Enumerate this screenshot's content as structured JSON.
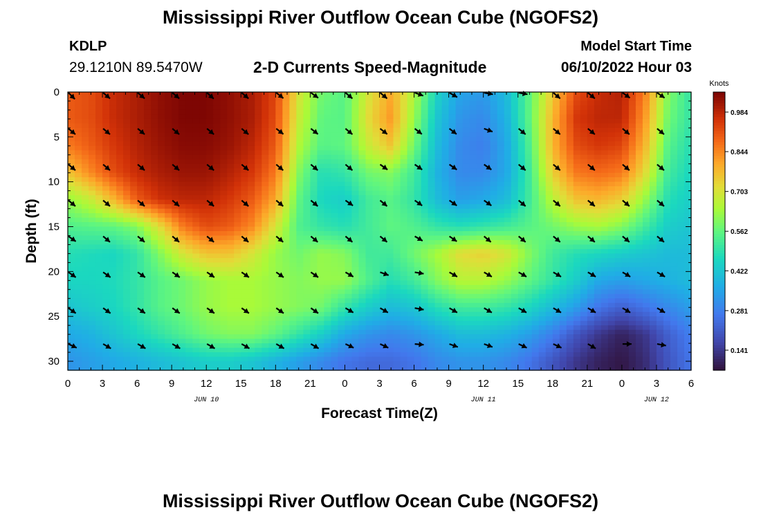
{
  "header": {
    "title": "Mississippi River Outflow Ocean Cube (NGOFS2)",
    "station_id": "KDLP",
    "station_coords": "29.1210N  89.5470W",
    "subtitle": "2-D Currents Speed-Magnitude",
    "model_start_label": "Model Start Time",
    "model_start_value": "06/10/2022 Hour 03"
  },
  "footer": {
    "title": "Mississippi River Outflow Ocean Cube (NGOFS2)"
  },
  "chart_data": {
    "type": "heatmap",
    "xlabel": "Forecast Time(Z)",
    "ylabel": "Depth (ft)",
    "x_range_hours": [
      0,
      54
    ],
    "y_range_ft": [
      0,
      31
    ],
    "x_ticks": [
      {
        "h": 0,
        "label": "0"
      },
      {
        "h": 3,
        "label": "3"
      },
      {
        "h": 6,
        "label": "6"
      },
      {
        "h": 9,
        "label": "9"
      },
      {
        "h": 12,
        "label": "12"
      },
      {
        "h": 15,
        "label": "15"
      },
      {
        "h": 18,
        "label": "18"
      },
      {
        "h": 21,
        "label": "21"
      },
      {
        "h": 24,
        "label": "0"
      },
      {
        "h": 27,
        "label": "3"
      },
      {
        "h": 30,
        "label": "6"
      },
      {
        "h": 33,
        "label": "9"
      },
      {
        "h": 36,
        "label": "12"
      },
      {
        "h": 39,
        "label": "15"
      },
      {
        "h": 42,
        "label": "18"
      },
      {
        "h": 45,
        "label": "21"
      },
      {
        "h": 48,
        "label": "0"
      },
      {
        "h": 51,
        "label": "3"
      },
      {
        "h": 54,
        "label": "6"
      }
    ],
    "date_labels": [
      {
        "h": 12,
        "label": "JUN 10"
      },
      {
        "h": 36,
        "label": "JUN 11"
      },
      {
        "h": 51,
        "label": "JUN 12"
      }
    ],
    "y_ticks": [
      0,
      5,
      10,
      15,
      20,
      25,
      30
    ],
    "colorbar": {
      "title": "Knots",
      "min": 0.07,
      "max": 1.055,
      "ticks": [
        "0.984",
        "0.844",
        "0.703",
        "0.562",
        "0.422",
        "0.281",
        "0.141"
      ]
    },
    "grid": false,
    "speed_time_hours": [
      0,
      2,
      4,
      6,
      8,
      10,
      12,
      14,
      16,
      18,
      20,
      22,
      24,
      26,
      28,
      30,
      32,
      34,
      36,
      38,
      40,
      42,
      44,
      46,
      48,
      50,
      52,
      54
    ],
    "speed_depth_ft": [
      0,
      3,
      6,
      9,
      12,
      15,
      18,
      21,
      24,
      27,
      30
    ],
    "speed_knots": [
      [
        0.9,
        0.92,
        0.97,
        1.0,
        1.03,
        1.05,
        1.05,
        1.03,
        1.0,
        0.93,
        0.7,
        0.58,
        0.55,
        0.7,
        0.8,
        0.65,
        0.45,
        0.35,
        0.33,
        0.4,
        0.56,
        0.75,
        0.92,
        0.97,
        0.99,
        0.85,
        0.6,
        0.5
      ],
      [
        0.9,
        0.92,
        0.97,
        1.0,
        1.03,
        1.05,
        1.05,
        1.03,
        1.0,
        0.92,
        0.68,
        0.56,
        0.55,
        0.72,
        0.82,
        0.62,
        0.42,
        0.32,
        0.3,
        0.38,
        0.56,
        0.78,
        0.95,
        0.98,
        0.98,
        0.82,
        0.58,
        0.5
      ],
      [
        0.86,
        0.9,
        0.95,
        0.99,
        1.02,
        1.04,
        1.04,
        1.02,
        0.98,
        0.9,
        0.65,
        0.55,
        0.56,
        0.68,
        0.76,
        0.58,
        0.4,
        0.3,
        0.28,
        0.36,
        0.54,
        0.78,
        0.92,
        0.95,
        0.93,
        0.78,
        0.55,
        0.48
      ],
      [
        0.76,
        0.84,
        0.92,
        0.97,
        1.0,
        1.02,
        1.02,
        0.99,
        0.95,
        0.86,
        0.6,
        0.48,
        0.5,
        0.58,
        0.6,
        0.52,
        0.38,
        0.3,
        0.3,
        0.36,
        0.52,
        0.74,
        0.86,
        0.88,
        0.86,
        0.72,
        0.52,
        0.46
      ],
      [
        0.62,
        0.68,
        0.78,
        0.9,
        0.96,
        0.98,
        0.98,
        0.95,
        0.9,
        0.8,
        0.56,
        0.46,
        0.44,
        0.52,
        0.55,
        0.5,
        0.4,
        0.34,
        0.36,
        0.4,
        0.52,
        0.66,
        0.76,
        0.78,
        0.74,
        0.62,
        0.48,
        0.44
      ],
      [
        0.54,
        0.55,
        0.56,
        0.6,
        0.72,
        0.86,
        0.92,
        0.9,
        0.84,
        0.7,
        0.54,
        0.5,
        0.48,
        0.52,
        0.56,
        0.54,
        0.5,
        0.48,
        0.5,
        0.52,
        0.55,
        0.58,
        0.62,
        0.64,
        0.6,
        0.52,
        0.44,
        0.42
      ],
      [
        0.48,
        0.47,
        0.46,
        0.5,
        0.6,
        0.7,
        0.76,
        0.76,
        0.7,
        0.62,
        0.58,
        0.62,
        0.6,
        0.52,
        0.52,
        0.58,
        0.64,
        0.72,
        0.74,
        0.7,
        0.6,
        0.52,
        0.48,
        0.46,
        0.44,
        0.42,
        0.4,
        0.4
      ],
      [
        0.46,
        0.46,
        0.47,
        0.5,
        0.55,
        0.58,
        0.62,
        0.64,
        0.64,
        0.62,
        0.6,
        0.62,
        0.62,
        0.54,
        0.48,
        0.52,
        0.6,
        0.66,
        0.66,
        0.62,
        0.56,
        0.5,
        0.44,
        0.36,
        0.34,
        0.36,
        0.38,
        0.4
      ],
      [
        0.42,
        0.44,
        0.46,
        0.5,
        0.55,
        0.58,
        0.62,
        0.64,
        0.64,
        0.62,
        0.6,
        0.58,
        0.5,
        0.44,
        0.4,
        0.42,
        0.48,
        0.52,
        0.52,
        0.5,
        0.46,
        0.4,
        0.34,
        0.26,
        0.22,
        0.26,
        0.3,
        0.34
      ],
      [
        0.36,
        0.38,
        0.42,
        0.46,
        0.5,
        0.54,
        0.58,
        0.6,
        0.6,
        0.56,
        0.5,
        0.44,
        0.36,
        0.32,
        0.3,
        0.32,
        0.36,
        0.4,
        0.4,
        0.38,
        0.34,
        0.28,
        0.2,
        0.14,
        0.1,
        0.14,
        0.22,
        0.28
      ],
      [
        0.32,
        0.34,
        0.36,
        0.38,
        0.4,
        0.42,
        0.44,
        0.44,
        0.42,
        0.38,
        0.34,
        0.3,
        0.26,
        0.24,
        0.24,
        0.26,
        0.3,
        0.32,
        0.32,
        0.3,
        0.26,
        0.2,
        0.14,
        0.1,
        0.08,
        0.12,
        0.2,
        0.26
      ]
    ],
    "vector_time_hours": [
      0,
      3,
      6,
      9,
      12,
      15,
      18,
      21,
      24,
      27,
      30,
      33,
      36,
      39,
      42,
      45,
      48,
      51
    ],
    "vector_depth_ft": [
      0,
      4,
      8,
      12,
      16,
      20,
      24,
      28
    ],
    "vector_direction_deg": [
      [
        135,
        130,
        130,
        130,
        132,
        130,
        128,
        125,
        130,
        130,
        110,
        120,
        100,
        100,
        130,
        130,
        125,
        125
      ],
      [
        130,
        130,
        130,
        130,
        130,
        130,
        128,
        128,
        130,
        128,
        128,
        128,
        110,
        130,
        130,
        130,
        130,
        130
      ],
      [
        130,
        130,
        130,
        130,
        130,
        130,
        130,
        130,
        130,
        125,
        125,
        125,
        125,
        130,
        130,
        130,
        130,
        130
      ],
      [
        130,
        130,
        130,
        130,
        130,
        130,
        130,
        130,
        125,
        130,
        125,
        125,
        125,
        130,
        130,
        130,
        130,
        130
      ],
      [
        125,
        130,
        130,
        130,
        130,
        130,
        130,
        130,
        130,
        130,
        120,
        125,
        130,
        130,
        130,
        130,
        130,
        130
      ],
      [
        125,
        125,
        125,
        125,
        125,
        125,
        125,
        125,
        120,
        110,
        100,
        120,
        120,
        120,
        120,
        120,
        120,
        120
      ],
      [
        125,
        125,
        125,
        125,
        125,
        125,
        125,
        125,
        120,
        120,
        100,
        120,
        120,
        120,
        120,
        120,
        120,
        120
      ],
      [
        115,
        120,
        120,
        120,
        120,
        120,
        120,
        120,
        115,
        115,
        95,
        110,
        110,
        115,
        115,
        120,
        90,
        100
      ]
    ]
  }
}
